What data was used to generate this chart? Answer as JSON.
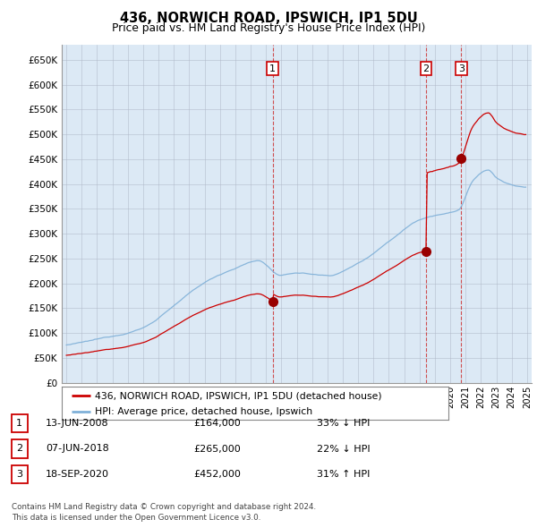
{
  "title": "436, NORWICH ROAD, IPSWICH, IP1 5DU",
  "subtitle": "Price paid vs. HM Land Registry's House Price Index (HPI)",
  "background_color": "#dce9f5",
  "plot_bg_color": "#dce9f5",
  "ylim": [
    0,
    680000
  ],
  "yticks": [
    0,
    50000,
    100000,
    150000,
    200000,
    250000,
    300000,
    350000,
    400000,
    450000,
    500000,
    550000,
    600000,
    650000
  ],
  "ytick_labels": [
    "£0",
    "£50K",
    "£100K",
    "£150K",
    "£200K",
    "£250K",
    "£300K",
    "£350K",
    "£400K",
    "£450K",
    "£500K",
    "£550K",
    "£600K",
    "£650K"
  ],
  "xlim_start": 1994.7,
  "xlim_end": 2025.3,
  "transactions": [
    {
      "date_year": 2008.44,
      "price": 164000,
      "label": "1"
    },
    {
      "date_year": 2018.43,
      "price": 265000,
      "label": "2"
    },
    {
      "date_year": 2020.71,
      "price": 452000,
      "label": "3"
    }
  ],
  "transaction_color": "#bb0000",
  "hpi_line_color": "#7fb0d8",
  "sale_line_color": "#cc0000",
  "legend_entries": [
    "436, NORWICH ROAD, IPSWICH, IP1 5DU (detached house)",
    "HPI: Average price, detached house, Ipswich"
  ],
  "table_rows": [
    {
      "num": "1",
      "date": "13-JUN-2008",
      "price": "£164,000",
      "hpi": "33% ↓ HPI"
    },
    {
      "num": "2",
      "date": "07-JUN-2018",
      "price": "£265,000",
      "hpi": "22% ↓ HPI"
    },
    {
      "num": "3",
      "date": "18-SEP-2020",
      "price": "£452,000",
      "hpi": "31% ↑ HPI"
    }
  ],
  "footer": "Contains HM Land Registry data © Crown copyright and database right 2024.\nThis data is licensed under the Open Government Licence v3.0."
}
